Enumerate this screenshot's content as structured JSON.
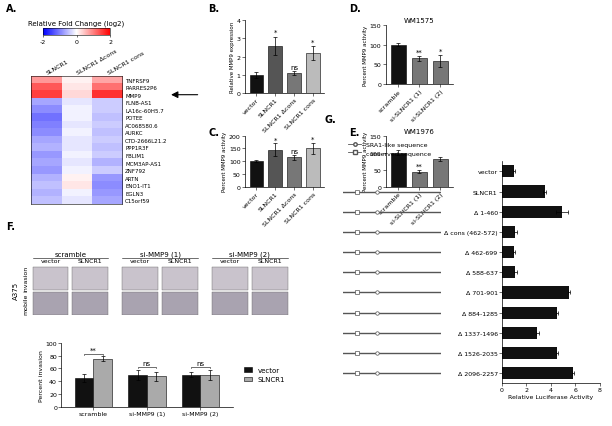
{
  "chart_data": [
    {
      "type": "heatmap",
      "panel": "A.",
      "columns": [
        "SLNCR1",
        "SLNCR1 Δcons",
        "SLNCR1 cons"
      ],
      "rows": [
        "TNFRSF9",
        "RARRES2P6",
        "MMP9",
        "FLNB-AS1",
        "LA16c-60H5.7",
        "POTEE",
        "AC068580.6",
        "AURKC",
        "CTD-2666L21.2",
        "PPP1R3F",
        "FBLIM1",
        "MCM3AP-AS1",
        "ZNF792",
        "ARTN",
        "ENO1-IT1",
        "EGLN3",
        "C15orf59"
      ],
      "cells": [
        [
          0.8,
          0.1,
          0.7
        ],
        [
          1.3,
          0.2,
          1.1
        ],
        [
          1.5,
          0.3,
          1.6
        ],
        [
          -0.7,
          -0.2,
          -0.4
        ],
        [
          -0.9,
          -0.1,
          -0.4
        ],
        [
          -1.1,
          -0.1,
          -0.5
        ],
        [
          -1.0,
          -0.2,
          -0.4
        ],
        [
          -0.9,
          -0.1,
          -0.5
        ],
        [
          -0.7,
          -0.2,
          -0.4
        ],
        [
          -0.6,
          -0.2,
          -0.5
        ],
        [
          -0.8,
          -0.1,
          -0.4
        ],
        [
          -0.7,
          -0.2,
          -0.6
        ],
        [
          -0.8,
          -0.1,
          -0.4
        ],
        [
          -0.6,
          0.1,
          -0.8
        ],
        [
          -0.5,
          0.2,
          -0.9
        ],
        [
          -0.6,
          -0.1,
          -0.8
        ],
        [
          -0.5,
          -0.2,
          -0.7
        ]
      ],
      "colorbar": {
        "label": "Relative Fold Change (log2)",
        "range": [
          -2,
          2
        ],
        "ticks": [
          -2,
          0,
          2
        ]
      },
      "arrow": "MMP9"
    },
    {
      "type": "bar",
      "panel": "B.",
      "ylabel": "Relative MMP9 expression",
      "categories": [
        "vector",
        "SLNCR1",
        "SLNCR1 Δcons",
        "SLNCR1 cons"
      ],
      "values": [
        1.0,
        2.6,
        1.1,
        2.2
      ],
      "errors": [
        0.15,
        0.5,
        0.1,
        0.4
      ],
      "colors": [
        "#111111",
        "#555555",
        "#777777",
        "#bbbbbb"
      ],
      "significance": [
        null,
        "*",
        "ns",
        "*"
      ],
      "ylim": [
        0,
        4
      ],
      "yticks": [
        0,
        1,
        2,
        3,
        4
      ]
    },
    {
      "type": "bar",
      "panel": "C.",
      "ylabel": "Percent MMP9 activity",
      "categories": [
        "vector",
        "SLNCR1",
        "SLNCR1 Δcons",
        "SLNCR1 cons"
      ],
      "values": [
        100,
        145,
        115,
        150
      ],
      "errors": [
        3,
        25,
        10,
        22
      ],
      "colors": [
        "#111111",
        "#555555",
        "#777777",
        "#bbbbbb"
      ],
      "significance": [
        null,
        "*",
        "ns",
        "*"
      ],
      "ylim": [
        0,
        200
      ],
      "yticks": [
        0,
        50,
        100,
        150,
        200
      ]
    },
    {
      "type": "bar",
      "panel": "D.",
      "title": "WM1575",
      "ylabel": "Percent MMP9 activity",
      "categories": [
        "scramble",
        "si-SLNCR1 (1)",
        "si-SLNCR1 (2)"
      ],
      "values": [
        100,
        65,
        58
      ],
      "errors": [
        3,
        6,
        15
      ],
      "colors": [
        "#111111",
        "#777777",
        "#777777"
      ],
      "significance": [
        null,
        "**",
        "*"
      ],
      "ylim": [
        0,
        150
      ],
      "yticks": [
        0,
        50,
        100,
        150
      ]
    },
    {
      "type": "bar",
      "panel": "E.",
      "title": "WM1976",
      "ylabel": "Percent MMP9 activity",
      "categories": [
        "scramble",
        "si-SLNCR1 (1)",
        "si-SLNCR1 (2)"
      ],
      "values": [
        100,
        45,
        82
      ],
      "errors": [
        8,
        5,
        6
      ],
      "colors": [
        "#111111",
        "#777777",
        "#777777"
      ],
      "significance": [
        null,
        "**",
        null
      ],
      "ylim": [
        0,
        150
      ],
      "yticks": [
        0,
        50,
        100,
        150
      ]
    },
    {
      "type": "image_grid",
      "panel": "F.",
      "cell_line": "A375",
      "groups": [
        "scramble",
        "si-MMP9 (1)",
        "si-MMP9 (2)"
      ],
      "columns": [
        "vector",
        "SLNCR1"
      ],
      "rows": [
        "invasion",
        "mobile"
      ]
    },
    {
      "type": "bar",
      "ylabel": "Percent invasion",
      "categories": [
        "scramble",
        "si-MMP9 (1)",
        "si-MMP9 (2)"
      ],
      "series": [
        {
          "name": "vector",
          "color": "#111111",
          "values": [
            45,
            50,
            50
          ],
          "errors": [
            6,
            8,
            4
          ]
        },
        {
          "name": "SLNCR1",
          "color": "#aaaaaa",
          "values": [
            75,
            48,
            50
          ],
          "errors": [
            4,
            7,
            8
          ]
        }
      ],
      "significance": [
        "**",
        "ns",
        "ns"
      ],
      "legend": "right",
      "ylim": [
        0,
        100
      ],
      "yticks": [
        0,
        20,
        40,
        60,
        80,
        100
      ]
    },
    {
      "type": "bar",
      "panel": "G.",
      "orientation": "horizontal",
      "xlabel": "Relative Luciferase Activity",
      "schematic": [
        "SRA1-like sequence",
        "conserved sequence"
      ],
      "categories": [
        "vector",
        "SLNCR1",
        "Δ 1-460",
        "Δ cons (462-572)",
        "Δ 462-699",
        "Δ 588-637",
        "Δ 701-901",
        "Δ 884-1285",
        "Δ 1337-1496",
        "Δ 1526-2035",
        "Δ 2096-2257"
      ],
      "values": [
        1.0,
        3.5,
        4.9,
        1.1,
        1.0,
        1.1,
        5.5,
        4.5,
        2.9,
        4.5,
        5.8
      ],
      "errors": [
        0.05,
        0.1,
        0.5,
        0.1,
        0.05,
        0.1,
        0.1,
        0.1,
        0.1,
        0.1,
        0.1
      ],
      "color": "#111111",
      "xlim": [
        0,
        8
      ],
      "xticks": [
        0,
        2,
        4,
        6,
        8
      ]
    }
  ]
}
